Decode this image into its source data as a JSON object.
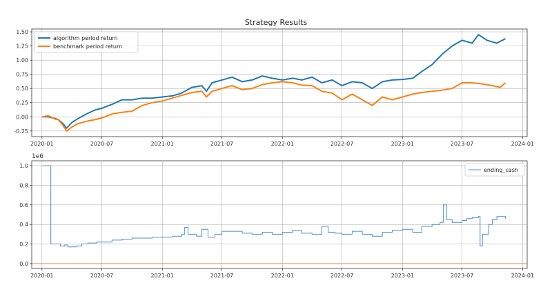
{
  "chart_data": [
    {
      "type": "line",
      "title": "Strategy Results",
      "xlabel": "",
      "ylabel": "",
      "x_ticks": [
        "2020-01",
        "2020-07",
        "2021-01",
        "2021-07",
        "2022-01",
        "2022-07",
        "2023-01",
        "2023-07",
        "2024-01"
      ],
      "y_ticks": [
        "-0.25",
        "0.00",
        "0.25",
        "0.50",
        "0.75",
        "1.00",
        "1.25",
        "1.50"
      ],
      "xlim": [
        "2019-12-01",
        "2024-01-15"
      ],
      "ylim": [
        -0.35,
        1.55
      ],
      "grid": true,
      "legend_position": "top-left",
      "series": [
        {
          "name": "algorithm period return",
          "color": "#1f77b4",
          "points": [
            [
              "2020-01-02",
              0.0
            ],
            [
              "2020-01-20",
              0.0
            ],
            [
              "2020-02-10",
              -0.03
            ],
            [
              "2020-02-20",
              -0.05
            ],
            [
              "2020-03-05",
              -0.12
            ],
            [
              "2020-03-16",
              -0.2
            ],
            [
              "2020-04-01",
              -0.1
            ],
            [
              "2020-04-20",
              -0.03
            ],
            [
              "2020-05-15",
              0.05
            ],
            [
              "2020-06-10",
              0.12
            ],
            [
              "2020-07-01",
              0.15
            ],
            [
              "2020-08-01",
              0.22
            ],
            [
              "2020-09-01",
              0.3
            ],
            [
              "2020-10-01",
              0.3
            ],
            [
              "2020-11-01",
              0.33
            ],
            [
              "2020-12-01",
              0.33
            ],
            [
              "2021-01-01",
              0.35
            ],
            [
              "2021-02-01",
              0.37
            ],
            [
              "2021-03-01",
              0.42
            ],
            [
              "2021-04-01",
              0.52
            ],
            [
              "2021-05-01",
              0.55
            ],
            [
              "2021-05-15",
              0.45
            ],
            [
              "2021-06-01",
              0.6
            ],
            [
              "2021-07-01",
              0.65
            ],
            [
              "2021-08-01",
              0.7
            ],
            [
              "2021-09-01",
              0.62
            ],
            [
              "2021-10-01",
              0.65
            ],
            [
              "2021-11-01",
              0.72
            ],
            [
              "2021-12-01",
              0.68
            ],
            [
              "2022-01-01",
              0.65
            ],
            [
              "2022-02-01",
              0.68
            ],
            [
              "2022-03-01",
              0.65
            ],
            [
              "2022-04-01",
              0.7
            ],
            [
              "2022-05-01",
              0.6
            ],
            [
              "2022-06-01",
              0.65
            ],
            [
              "2022-07-01",
              0.55
            ],
            [
              "2022-08-01",
              0.62
            ],
            [
              "2022-09-01",
              0.6
            ],
            [
              "2022-10-01",
              0.5
            ],
            [
              "2022-11-01",
              0.62
            ],
            [
              "2022-12-01",
              0.65
            ],
            [
              "2023-01-01",
              0.66
            ],
            [
              "2023-02-01",
              0.68
            ],
            [
              "2023-03-01",
              0.8
            ],
            [
              "2023-04-01",
              0.92
            ],
            [
              "2023-05-01",
              1.1
            ],
            [
              "2023-06-01",
              1.25
            ],
            [
              "2023-07-01",
              1.35
            ],
            [
              "2023-08-01",
              1.3
            ],
            [
              "2023-08-20",
              1.45
            ],
            [
              "2023-09-15",
              1.35
            ],
            [
              "2023-10-15",
              1.3
            ],
            [
              "2023-11-10",
              1.38
            ]
          ]
        },
        {
          "name": "benchmark period return",
          "color": "#ff7f0e",
          "points": [
            [
              "2020-01-02",
              0.0
            ],
            [
              "2020-01-20",
              0.02
            ],
            [
              "2020-02-10",
              -0.04
            ],
            [
              "2020-02-20",
              -0.05
            ],
            [
              "2020-03-05",
              -0.15
            ],
            [
              "2020-03-16",
              -0.25
            ],
            [
              "2020-04-01",
              -0.18
            ],
            [
              "2020-04-20",
              -0.12
            ],
            [
              "2020-05-15",
              -0.08
            ],
            [
              "2020-06-10",
              -0.05
            ],
            [
              "2020-07-01",
              -0.02
            ],
            [
              "2020-08-01",
              0.05
            ],
            [
              "2020-09-01",
              0.08
            ],
            [
              "2020-10-01",
              0.1
            ],
            [
              "2020-11-01",
              0.2
            ],
            [
              "2020-12-01",
              0.25
            ],
            [
              "2021-01-01",
              0.28
            ],
            [
              "2021-02-01",
              0.33
            ],
            [
              "2021-03-01",
              0.38
            ],
            [
              "2021-04-01",
              0.43
            ],
            [
              "2021-05-01",
              0.45
            ],
            [
              "2021-05-15",
              0.35
            ],
            [
              "2021-06-01",
              0.45
            ],
            [
              "2021-07-01",
              0.5
            ],
            [
              "2021-08-01",
              0.55
            ],
            [
              "2021-09-01",
              0.48
            ],
            [
              "2021-10-01",
              0.5
            ],
            [
              "2021-11-01",
              0.57
            ],
            [
              "2021-12-01",
              0.6
            ],
            [
              "2022-01-01",
              0.62
            ],
            [
              "2022-02-01",
              0.6
            ],
            [
              "2022-03-01",
              0.56
            ],
            [
              "2022-04-01",
              0.55
            ],
            [
              "2022-05-01",
              0.45
            ],
            [
              "2022-06-01",
              0.42
            ],
            [
              "2022-07-01",
              0.3
            ],
            [
              "2022-08-01",
              0.4
            ],
            [
              "2022-09-01",
              0.3
            ],
            [
              "2022-10-01",
              0.2
            ],
            [
              "2022-11-01",
              0.35
            ],
            [
              "2022-12-01",
              0.3
            ],
            [
              "2023-01-01",
              0.35
            ],
            [
              "2023-02-01",
              0.4
            ],
            [
              "2023-03-01",
              0.43
            ],
            [
              "2023-04-01",
              0.45
            ],
            [
              "2023-05-01",
              0.47
            ],
            [
              "2023-06-01",
              0.5
            ],
            [
              "2023-07-01",
              0.6
            ],
            [
              "2023-08-01",
              0.6
            ],
            [
              "2023-09-01",
              0.58
            ],
            [
              "2023-10-01",
              0.55
            ],
            [
              "2023-10-25",
              0.52
            ],
            [
              "2023-11-10",
              0.6
            ]
          ]
        }
      ]
    },
    {
      "type": "line",
      "title": "",
      "xlabel": "",
      "ylabel": "",
      "y_scale_label": "1e6",
      "x_ticks": [
        "2020-01",
        "2020-07",
        "2021-01",
        "2021-07",
        "2022-01",
        "2022-07",
        "2023-01",
        "2023-07",
        "2024-01"
      ],
      "y_ticks": [
        "0.0",
        "0.2",
        "0.4",
        "0.6",
        "0.8",
        "1.0"
      ],
      "xlim": [
        "2019-12-01",
        "2024-01-15"
      ],
      "ylim": [
        -0.05,
        1.05
      ],
      "grid": true,
      "legend_position": "top-right",
      "baseline": {
        "value": 0.0,
        "color": "#e8956a"
      },
      "series": [
        {
          "name": "ending_cash",
          "color": "#4f8cc9",
          "style": "step",
          "points": [
            [
              "2020-01-02",
              1.0
            ],
            [
              "2020-01-27",
              1.0
            ],
            [
              "2020-01-28",
              0.2
            ],
            [
              "2020-02-25",
              0.2
            ],
            [
              "2020-02-26",
              0.18
            ],
            [
              "2020-03-10",
              0.19
            ],
            [
              "2020-03-20",
              0.17
            ],
            [
              "2020-04-15",
              0.18
            ],
            [
              "2020-05-01",
              0.2
            ],
            [
              "2020-05-20",
              0.21
            ],
            [
              "2020-06-15",
              0.22
            ],
            [
              "2020-07-01",
              0.22
            ],
            [
              "2020-08-01",
              0.24
            ],
            [
              "2020-09-01",
              0.25
            ],
            [
              "2020-10-01",
              0.26
            ],
            [
              "2020-11-01",
              0.26
            ],
            [
              "2020-12-01",
              0.27
            ],
            [
              "2021-01-01",
              0.27
            ],
            [
              "2021-02-01",
              0.28
            ],
            [
              "2021-03-01",
              0.3
            ],
            [
              "2021-03-10",
              0.37
            ],
            [
              "2021-03-20",
              0.3
            ],
            [
              "2021-04-15",
              0.28
            ],
            [
              "2021-05-01",
              0.35
            ],
            [
              "2021-05-20",
              0.27
            ],
            [
              "2021-06-10",
              0.3
            ],
            [
              "2021-07-01",
              0.33
            ],
            [
              "2021-08-01",
              0.33
            ],
            [
              "2021-09-01",
              0.31
            ],
            [
              "2021-10-01",
              0.3
            ],
            [
              "2021-11-01",
              0.32
            ],
            [
              "2021-12-01",
              0.3
            ],
            [
              "2022-01-01",
              0.32
            ],
            [
              "2022-02-01",
              0.34
            ],
            [
              "2022-03-01",
              0.31
            ],
            [
              "2022-04-01",
              0.3
            ],
            [
              "2022-05-01",
              0.38
            ],
            [
              "2022-05-20",
              0.32
            ],
            [
              "2022-06-10",
              0.31
            ],
            [
              "2022-07-01",
              0.3
            ],
            [
              "2022-08-01",
              0.33
            ],
            [
              "2022-09-01",
              0.3
            ],
            [
              "2022-10-01",
              0.28
            ],
            [
              "2022-11-01",
              0.32
            ],
            [
              "2022-12-01",
              0.34
            ],
            [
              "2023-01-01",
              0.35
            ],
            [
              "2023-02-01",
              0.32
            ],
            [
              "2023-03-01",
              0.38
            ],
            [
              "2023-04-01",
              0.4
            ],
            [
              "2023-04-25",
              0.42
            ],
            [
              "2023-05-05",
              0.6
            ],
            [
              "2023-05-15",
              0.45
            ],
            [
              "2023-06-01",
              0.42
            ],
            [
              "2023-07-01",
              0.44
            ],
            [
              "2023-07-15",
              0.46
            ],
            [
              "2023-08-01",
              0.47
            ],
            [
              "2023-08-20",
              0.48
            ],
            [
              "2023-08-25",
              0.18
            ],
            [
              "2023-09-01",
              0.3
            ],
            [
              "2023-09-20",
              0.4
            ],
            [
              "2023-10-01",
              0.45
            ],
            [
              "2023-10-15",
              0.48
            ],
            [
              "2023-11-10",
              0.46
            ]
          ]
        }
      ]
    }
  ]
}
